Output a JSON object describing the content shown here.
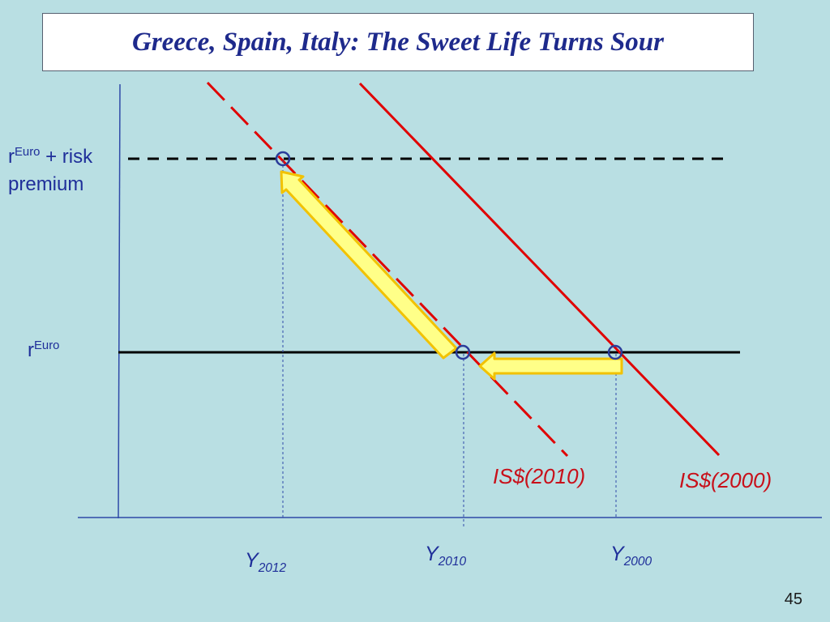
{
  "slide": {
    "title": "Greece, Spain, Italy: The Sweet Life Turns Sour",
    "page_number": "45"
  },
  "labels": {
    "r_risk_base": "r",
    "r_risk_sup": "Euro",
    "r_risk_suffix": " + risk",
    "r_risk_line2": "premium",
    "r_euro_base": "r",
    "r_euro_sup": "Euro",
    "y2012_base": "Y",
    "y2012_sub": "2012",
    "y2010_base": "Y",
    "y2010_sub": "2010",
    "y2000_base": "Y",
    "y2000_sub": "2000",
    "is2010": "IS$(2010)",
    "is2000": "IS$(2000)"
  },
  "colors": {
    "background": "#b9dfe3",
    "title_text": "#1e2a8c",
    "axis": "#2f4aa8",
    "curve": "#e00000",
    "arrow_fill": "#ffff88",
    "arrow_stroke": "#f2c200",
    "marker": "#2b3c9a"
  }
}
